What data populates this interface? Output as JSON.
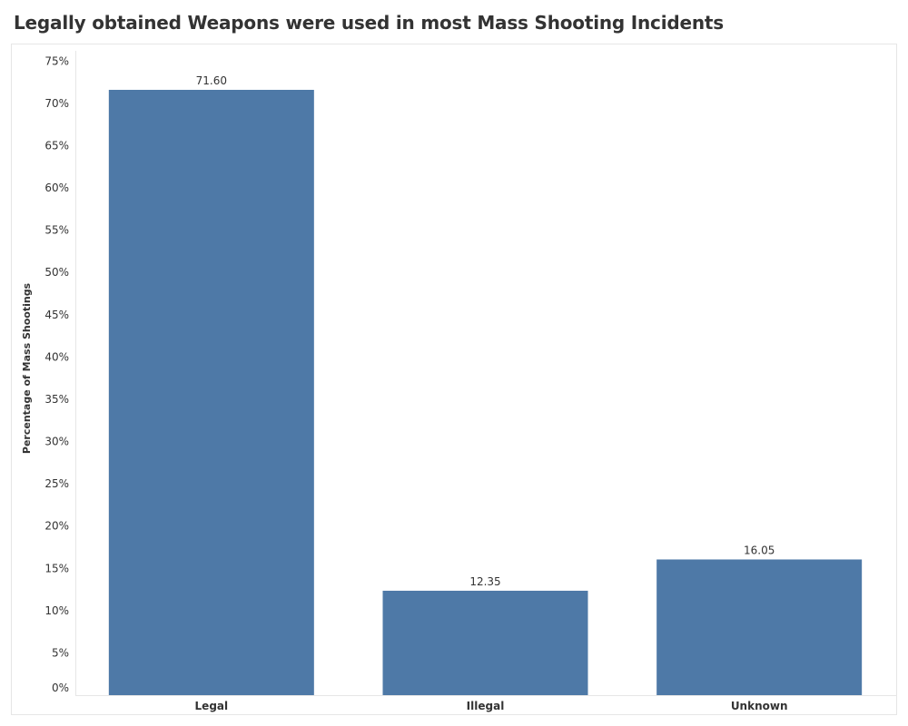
{
  "title": "Legally obtained Weapons were used in most Mass Shooting Incidents",
  "chart_data": {
    "type": "bar",
    "title": "Legally obtained Weapons were used in most Mass Shooting Incidents",
    "xlabel": "",
    "ylabel": "Percentage of Mass Shootings",
    "categories": [
      "Legal",
      "Illegal",
      "Unknown"
    ],
    "values": [
      71.6,
      12.35,
      16.05
    ],
    "data_labels": [
      "71.60",
      "12.35",
      "16.05"
    ],
    "ylim": [
      0,
      75
    ],
    "y_ticks": [
      0,
      5,
      10,
      15,
      20,
      25,
      30,
      35,
      40,
      45,
      50,
      55,
      60,
      65,
      70,
      75
    ],
    "y_tick_labels": [
      "0%",
      "5%",
      "10%",
      "15%",
      "20%",
      "25%",
      "30%",
      "35%",
      "40%",
      "45%",
      "50%",
      "55%",
      "60%",
      "65%",
      "70%",
      "75%"
    ],
    "bar_color": "#4e79a7",
    "grid": false,
    "legend": "none"
  }
}
